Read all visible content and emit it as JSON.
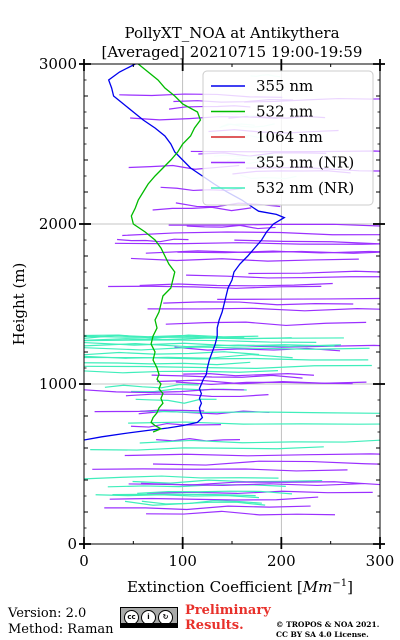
{
  "chart_data": {
    "type": "line",
    "title": "PollyXT_NOA at Antikythera\n[Averaged] 20210715 19:00-19:59",
    "title_lines": [
      "PollyXT_NOA at Antikythera",
      "[Averaged] 20210715 19:00-19:59"
    ],
    "xlabel": "Extinction Coefficient [Mm^-1]",
    "xlabel_main": "Extinction Coefficient [",
    "xlabel_unit": "Mm",
    "xlabel_exp": "−1",
    "xlabel_close": "]",
    "ylabel": "Height (m)",
    "xlim": [
      0,
      300
    ],
    "ylim": [
      0,
      3000
    ],
    "xticks": [
      0,
      100,
      200,
      300
    ],
    "yticks": [
      0,
      1000,
      2000,
      3000
    ],
    "grid": true,
    "legend_position": "top-right",
    "series": [
      {
        "name": "355 nm",
        "color": "#0000ee",
        "points": [
          [
            0,
            650
          ],
          [
            18,
            670
          ],
          [
            40,
            690
          ],
          [
            65,
            710
          ],
          [
            85,
            725
          ],
          [
            100,
            740
          ],
          [
            115,
            760
          ],
          [
            120,
            790
          ],
          [
            118,
            820
          ],
          [
            117,
            850
          ],
          [
            119,
            880
          ],
          [
            117,
            910
          ],
          [
            119,
            940
          ],
          [
            117,
            970
          ],
          [
            119,
            1000
          ],
          [
            121,
            1030
          ],
          [
            124,
            1060
          ],
          [
            125,
            1100
          ],
          [
            127,
            1150
          ],
          [
            130,
            1200
          ],
          [
            133,
            1250
          ],
          [
            135,
            1300
          ],
          [
            135,
            1350
          ],
          [
            137,
            1400
          ],
          [
            140,
            1450
          ],
          [
            142,
            1500
          ],
          [
            144,
            1550
          ],
          [
            146,
            1600
          ],
          [
            150,
            1650
          ],
          [
            152,
            1700
          ],
          [
            158,
            1750
          ],
          [
            166,
            1800
          ],
          [
            173,
            1850
          ],
          [
            180,
            1900
          ],
          [
            185,
            1950
          ],
          [
            192,
            2000
          ],
          [
            203,
            2040
          ],
          [
            195,
            2060
          ],
          [
            177,
            2080
          ],
          [
            172,
            2100
          ],
          [
            160,
            2150
          ],
          [
            145,
            2200
          ],
          [
            132,
            2250
          ],
          [
            120,
            2300
          ],
          [
            108,
            2350
          ],
          [
            100,
            2400
          ],
          [
            92,
            2450
          ],
          [
            88,
            2500
          ],
          [
            82,
            2550
          ],
          [
            72,
            2600
          ],
          [
            60,
            2650
          ],
          [
            50,
            2700
          ],
          [
            40,
            2750
          ],
          [
            30,
            2800
          ],
          [
            28,
            2850
          ],
          [
            25,
            2900
          ],
          [
            36,
            2950
          ],
          [
            52,
            3000
          ]
        ]
      },
      {
        "name": "532 nm",
        "color": "#00bb00",
        "points": [
          [
            70,
            700
          ],
          [
            78,
            720
          ],
          [
            72,
            740
          ],
          [
            68,
            760
          ],
          [
            70,
            790
          ],
          [
            74,
            820
          ],
          [
            76,
            850
          ],
          [
            80,
            880
          ],
          [
            78,
            910
          ],
          [
            80,
            940
          ],
          [
            76,
            970
          ],
          [
            78,
            1000
          ],
          [
            74,
            1030
          ],
          [
            76,
            1060
          ],
          [
            74,
            1100
          ],
          [
            70,
            1150
          ],
          [
            72,
            1200
          ],
          [
            68,
            1250
          ],
          [
            70,
            1300
          ],
          [
            74,
            1350
          ],
          [
            72,
            1400
          ],
          [
            76,
            1450
          ],
          [
            78,
            1500
          ],
          [
            80,
            1550
          ],
          [
            88,
            1600
          ],
          [
            90,
            1650
          ],
          [
            92,
            1700
          ],
          [
            86,
            1750
          ],
          [
            82,
            1800
          ],
          [
            78,
            1850
          ],
          [
            72,
            1900
          ],
          [
            62,
            1950
          ],
          [
            50,
            2000
          ],
          [
            48,
            2050
          ],
          [
            52,
            2100
          ],
          [
            55,
            2150
          ],
          [
            60,
            2200
          ],
          [
            65,
            2250
          ],
          [
            72,
            2300
          ],
          [
            80,
            2350
          ],
          [
            88,
            2400
          ],
          [
            95,
            2450
          ],
          [
            100,
            2500
          ],
          [
            108,
            2550
          ],
          [
            112,
            2600
          ],
          [
            118,
            2650
          ],
          [
            115,
            2700
          ],
          [
            100,
            2750
          ],
          [
            92,
            2800
          ],
          [
            82,
            2850
          ],
          [
            75,
            2900
          ],
          [
            65,
            2950
          ],
          [
            55,
            3000
          ]
        ]
      },
      {
        "name": "1064 nm",
        "color": "#d62728",
        "points": []
      },
      {
        "name": "355 nm (NR)",
        "color": "#9b30ff",
        "points": []
      },
      {
        "name": "532 nm (NR)",
        "color": "#40eebb",
        "points": []
      }
    ]
  },
  "footer": {
    "version": "Version: 2.0",
    "method": "Method: Raman",
    "prelim_line1": "Preliminary",
    "prelim_line2": "Results.",
    "copyright_line1": "© TROPOS & NOA 2021.",
    "copyright_line2": "CC BY SA 4.0 License.",
    "cc_label": "cc"
  }
}
